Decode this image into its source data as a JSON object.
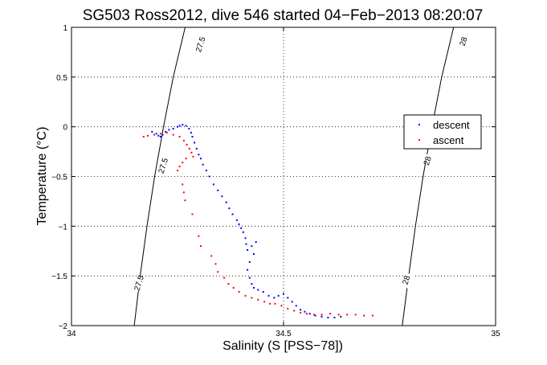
{
  "chart_data": {
    "type": "scatter",
    "title": "SG503 Ross2012, dive 546 started 04−Feb−2013 08:20:07",
    "xlabel": "Salinity (S [PSS−78])",
    "ylabel": "Temperature (°C)",
    "xlim": [
      34,
      35
    ],
    "ylim": [
      -2,
      1
    ],
    "x_ticks": [
      34,
      34.5,
      35
    ],
    "x_tick_labels": [
      "34",
      "34.5",
      "35"
    ],
    "y_ticks": [
      1,
      0.5,
      0,
      -0.5,
      -1,
      -1.5,
      -2
    ],
    "y_tick_labels": [
      "1",
      "0.5",
      "0",
      "−0.5",
      "−1",
      "−1.5",
      "−2"
    ],
    "grid": true,
    "legend_position": "right",
    "series": [
      {
        "name": "descent",
        "color": "#0000ff",
        "points": [
          [
            34.19,
            -0.05
          ],
          [
            34.2,
            -0.07
          ],
          [
            34.205,
            -0.09
          ],
          [
            34.21,
            -0.1
          ],
          [
            34.215,
            -0.08
          ],
          [
            34.222,
            -0.05
          ],
          [
            34.23,
            -0.03
          ],
          [
            34.24,
            -0.02
          ],
          [
            34.25,
            0.0
          ],
          [
            34.255,
            0.01
          ],
          [
            34.262,
            0.02
          ],
          [
            34.27,
            0.01
          ],
          [
            34.277,
            -0.02
          ],
          [
            34.282,
            -0.06
          ],
          [
            34.285,
            -0.1
          ],
          [
            34.29,
            -0.16
          ],
          [
            34.295,
            -0.22
          ],
          [
            34.3,
            -0.28
          ],
          [
            34.305,
            -0.32
          ],
          [
            34.31,
            -0.38
          ],
          [
            34.318,
            -0.44
          ],
          [
            34.325,
            -0.5
          ],
          [
            34.335,
            -0.58
          ],
          [
            34.345,
            -0.64
          ],
          [
            34.355,
            -0.7
          ],
          [
            34.365,
            -0.76
          ],
          [
            34.372,
            -0.82
          ],
          [
            34.38,
            -0.88
          ],
          [
            34.39,
            -0.94
          ],
          [
            34.395,
            -0.98
          ],
          [
            34.4,
            -1.02
          ],
          [
            34.405,
            -1.06
          ],
          [
            34.41,
            -1.12
          ],
          [
            34.412,
            -1.18
          ],
          [
            34.415,
            -1.24
          ],
          [
            34.425,
            -1.2
          ],
          [
            34.435,
            -1.16
          ],
          [
            34.43,
            -1.28
          ],
          [
            34.42,
            -1.36
          ],
          [
            34.415,
            -1.44
          ],
          [
            34.42,
            -1.52
          ],
          [
            34.425,
            -1.58
          ],
          [
            34.43,
            -1.62
          ],
          [
            34.44,
            -1.64
          ],
          [
            34.452,
            -1.66
          ],
          [
            34.465,
            -1.7
          ],
          [
            34.478,
            -1.72
          ],
          [
            34.488,
            -1.7
          ],
          [
            34.5,
            -1.68
          ],
          [
            34.51,
            -1.72
          ],
          [
            34.52,
            -1.76
          ],
          [
            34.53,
            -1.8
          ],
          [
            34.54,
            -1.84
          ],
          [
            34.55,
            -1.86
          ],
          [
            34.562,
            -1.88
          ],
          [
            34.575,
            -1.9
          ],
          [
            34.59,
            -1.91
          ],
          [
            34.605,
            -1.92
          ],
          [
            34.62,
            -1.92
          ],
          [
            34.635,
            -1.91
          ]
        ]
      },
      {
        "name": "ascent",
        "color": "#ff0000",
        "points": [
          [
            34.17,
            -0.1
          ],
          [
            34.18,
            -0.09
          ],
          [
            34.195,
            -0.08
          ],
          [
            34.21,
            -0.07
          ],
          [
            34.225,
            -0.06
          ],
          [
            34.24,
            -0.08
          ],
          [
            34.255,
            -0.1
          ],
          [
            34.265,
            -0.14
          ],
          [
            34.272,
            -0.18
          ],
          [
            34.278,
            -0.22
          ],
          [
            34.283,
            -0.26
          ],
          [
            34.287,
            -0.3
          ],
          [
            34.27,
            -0.32
          ],
          [
            34.262,
            -0.36
          ],
          [
            34.255,
            -0.4
          ],
          [
            34.25,
            -0.44
          ],
          [
            34.262,
            -0.58
          ],
          [
            34.265,
            -0.66
          ],
          [
            34.268,
            -0.74
          ],
          [
            34.285,
            -0.88
          ],
          [
            34.3,
            -1.1
          ],
          [
            34.305,
            -1.2
          ],
          [
            34.33,
            -1.3
          ],
          [
            34.34,
            -1.38
          ],
          [
            34.345,
            -1.46
          ],
          [
            34.36,
            -1.52
          ],
          [
            34.37,
            -1.58
          ],
          [
            34.382,
            -1.62
          ],
          [
            34.395,
            -1.66
          ],
          [
            34.41,
            -1.7
          ],
          [
            34.425,
            -1.72
          ],
          [
            34.44,
            -1.74
          ],
          [
            34.455,
            -1.76
          ],
          [
            34.468,
            -1.78
          ],
          [
            34.48,
            -1.78
          ],
          [
            34.495,
            -1.8
          ],
          [
            34.51,
            -1.83
          ],
          [
            34.525,
            -1.85
          ],
          [
            34.54,
            -1.87
          ],
          [
            34.555,
            -1.88
          ],
          [
            34.572,
            -1.89
          ],
          [
            34.59,
            -1.89
          ],
          [
            34.61,
            -1.88
          ],
          [
            34.63,
            -1.89
          ],
          [
            34.65,
            -1.89
          ],
          [
            34.67,
            -1.89
          ],
          [
            34.69,
            -1.9
          ],
          [
            34.71,
            -1.9
          ]
        ]
      }
    ],
    "density_contours": [
      {
        "label": "27.5",
        "color": "#000000",
        "points": [
          [
            34.148,
            -2.0
          ],
          [
            34.162,
            -1.5
          ],
          [
            34.178,
            -1.0
          ],
          [
            34.196,
            -0.5
          ],
          [
            34.217,
            0.0
          ],
          [
            34.24,
            0.5
          ],
          [
            34.268,
            1.0
          ]
        ],
        "label_positions": [
          [
            34.165,
            -1.58
          ],
          [
            34.222,
            -0.4
          ],
          [
            34.31,
            0.82
          ]
        ]
      },
      {
        "label": "28",
        "color": "#000000",
        "points": [
          [
            34.78,
            -2.0
          ],
          [
            34.795,
            -1.5
          ],
          [
            34.811,
            -1.0
          ],
          [
            34.829,
            -0.5
          ],
          [
            34.85,
            0.0
          ],
          [
            34.873,
            0.5
          ],
          [
            34.901,
            1.0
          ]
        ],
        "label_positions": [
          [
            34.795,
            -1.55
          ],
          [
            34.845,
            -0.35
          ],
          [
            34.93,
            0.85
          ]
        ]
      }
    ]
  }
}
